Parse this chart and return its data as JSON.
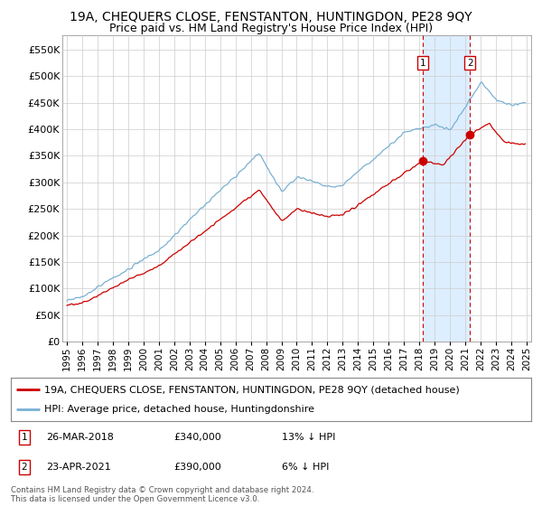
{
  "title": "19A, CHEQUERS CLOSE, FENSTANTON, HUNTINGDON, PE28 9QY",
  "subtitle": "Price paid vs. HM Land Registry's House Price Index (HPI)",
  "ytick_values": [
    0,
    50000,
    100000,
    150000,
    200000,
    250000,
    300000,
    350000,
    400000,
    450000,
    500000,
    550000
  ],
  "ylim": [
    0,
    577000
  ],
  "xlim_start": 1994.7,
  "xlim_end": 2025.3,
  "hpi_color": "#7ab0d4",
  "price_color": "#cc0000",
  "shade_color": "#ddeeff",
  "background_color": "#ffffff",
  "grid_color": "#cccccc",
  "purchase1_x": 2018.23,
  "purchase1_y": 340000,
  "purchase2_x": 2021.31,
  "purchase2_y": 390000,
  "legend_line1": "19A, CHEQUERS CLOSE, FENSTANTON, HUNTINGDON, PE28 9QY (detached house)",
  "legend_line2": "HPI: Average price, detached house, Huntingdonshire",
  "table_row1": [
    "1",
    "26-MAR-2018",
    "£340,000",
    "13% ↓ HPI"
  ],
  "table_row2": [
    "2",
    "23-APR-2021",
    "£390,000",
    "6% ↓ HPI"
  ],
  "footer": "Contains HM Land Registry data © Crown copyright and database right 2024.\nThis data is licensed under the Open Government Licence v3.0.",
  "title_fontsize": 10,
  "subtitle_fontsize": 9,
  "tick_fontsize": 8,
  "legend_fontsize": 8
}
